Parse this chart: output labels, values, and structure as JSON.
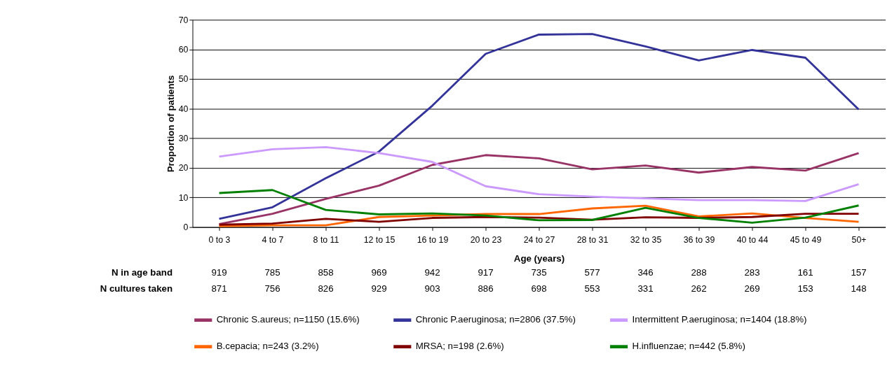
{
  "chart_data": {
    "type": "line",
    "xlabel": "Age (years)",
    "ylabel": "Proportion of patients",
    "categories": [
      "0 to 3",
      "4 to 7",
      "8 to 11",
      "12 to 15",
      "16 to 19",
      "20 to 23",
      "24 to 27",
      "28 to 31",
      "32 to 35",
      "36 to 39",
      "40 to 44",
      "45 to 49",
      "50+"
    ],
    "series": [
      {
        "name": "Chronic S.aureus; n=1150 (15.6%)",
        "color": "#993366",
        "values": [
          1,
          4.5,
          9.5,
          14,
          21,
          24.3,
          23.2,
          19.5,
          20.8,
          18.4,
          20.3,
          19.1,
          25
        ]
      },
      {
        "name": "Chronic P.aeruginosa; n=2806 (37.5%)",
        "color": "#333399",
        "values": [
          2.8,
          6.7,
          16.5,
          25.5,
          41,
          58.5,
          65,
          65.2,
          61,
          56.3,
          59.8,
          57.2,
          39.7
        ]
      },
      {
        "name": "Intermittent P.aeruginosa; n=1404 (18.8%)",
        "color": "#cc99ff",
        "values": [
          23.8,
          26.3,
          27,
          25,
          22,
          13.8,
          11.1,
          10.3,
          9.7,
          9.1,
          9.1,
          8.8,
          14.5
        ]
      },
      {
        "name": "B.cepacia; n=243 (3.2%)",
        "color": "#ff6600",
        "values": [
          0.3,
          0.6,
          0.6,
          3.4,
          3.9,
          4.4,
          4.4,
          6.3,
          7.2,
          3.6,
          4.6,
          3.1,
          1.8
        ]
      },
      {
        "name": "MRSA; n=198 (2.6%)",
        "color": "#800000",
        "values": [
          0.8,
          1.2,
          2.8,
          1.8,
          3.1,
          3.4,
          3.2,
          2.5,
          3.3,
          3.1,
          3.4,
          4.5,
          4.5
        ]
      },
      {
        "name": "H.influenzae; n=442 (5.8%)",
        "color": "#008000",
        "values": [
          11.5,
          12.5,
          5.8,
          4.3,
          4.6,
          3.9,
          2.3,
          2.4,
          6.5,
          3.1,
          1.5,
          3.2,
          7.3
        ]
      }
    ],
    "ylim": [
      0,
      70
    ],
    "yticks": [
      0,
      10,
      20,
      30,
      40,
      50,
      60,
      70
    ],
    "grid": "y",
    "legend": "bottom",
    "marker": "none",
    "line_style": "solid",
    "annotations": [
      "N in age band",
      "919",
      "785",
      "858",
      "969",
      "942",
      "917",
      "735",
      "577",
      "346",
      "288",
      "283",
      "161",
      "157",
      "N cultures taken",
      "871",
      "756",
      "826",
      "929",
      "903",
      "886",
      "698",
      "553",
      "331",
      "262",
      "269",
      "153",
      "148"
    ]
  }
}
